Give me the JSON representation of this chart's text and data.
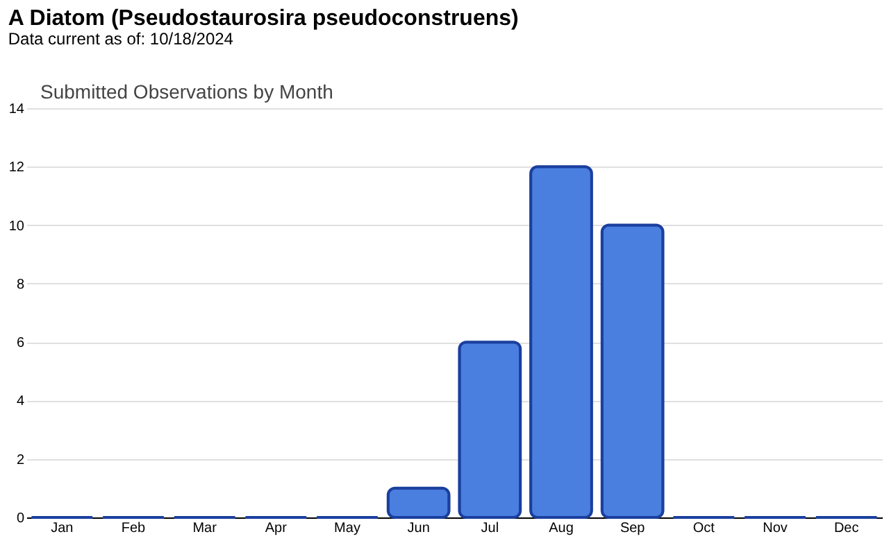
{
  "chart_data": {
    "type": "bar",
    "title": "A Diatom   (Pseudostaurosira pseudoconstruens)",
    "subtitle": "Data current as of: 10/18/2024",
    "annotations": [
      "Submitted Observations by Month"
    ],
    "categories": [
      "Jan",
      "Feb",
      "Mar",
      "Apr",
      "May",
      "Jun",
      "Jul",
      "Aug",
      "Sep",
      "Oct",
      "Nov",
      "Dec"
    ],
    "values": [
      0,
      0,
      0,
      0,
      0,
      1,
      6,
      12,
      10,
      0,
      0,
      0
    ],
    "color": "#4a7fe0",
    "ylim": [
      0,
      14
    ],
    "yticks": [
      0,
      2,
      4,
      6,
      8,
      10,
      12,
      14
    ],
    "grid": "y"
  }
}
